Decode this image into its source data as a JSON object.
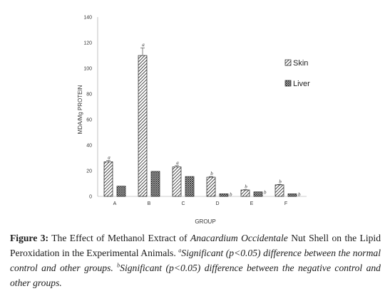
{
  "chart_data": {
    "type": "bar",
    "categories": [
      "A",
      "B",
      "C",
      "D",
      "E",
      "F"
    ],
    "series": [
      {
        "name": "Skin",
        "values": [
          27,
          110,
          23,
          15,
          5,
          9
        ],
        "errors": [
          1,
          6,
          1,
          0.5,
          0.3,
          0.3
        ],
        "sig": [
          "a",
          "a",
          "a",
          "b",
          "b",
          "b"
        ],
        "pattern": "diagonal-hatch"
      },
      {
        "name": "Liver",
        "values": [
          8,
          19.5,
          15.5,
          2,
          3.5,
          2
        ],
        "errors": [
          0,
          0,
          0,
          0,
          0,
          0
        ],
        "sig": [
          "",
          "",
          "",
          "b",
          "b",
          "b"
        ],
        "pattern": "crosshatch"
      }
    ],
    "ylabel": "MDA/Mg PROTEIN",
    "xlabel": "GROUP",
    "ylim": [
      0,
      140
    ],
    "yticks": [
      "0",
      "20",
      "40",
      "60",
      "80",
      "100",
      "120",
      "140"
    ],
    "grid": false,
    "legend_position": "right"
  },
  "caption": {
    "label": "Figure 3:",
    "text_1": " The Effect of Methanol Extract of ",
    "species": "Anacardium Occidentale",
    "text_2": " Nut Shell on the Lipid Peroxidation in the Experimental Animals. ",
    "note_a_mark": "a",
    "note_a": "Significant (p<0.05) difference between the normal control and other groups. ",
    "note_b_mark": "b",
    "note_b": "Significant (p<0.05) difference between the negative control and other groups."
  },
  "colors": {
    "bar_stroke": "#222222",
    "axis": "#999999"
  }
}
